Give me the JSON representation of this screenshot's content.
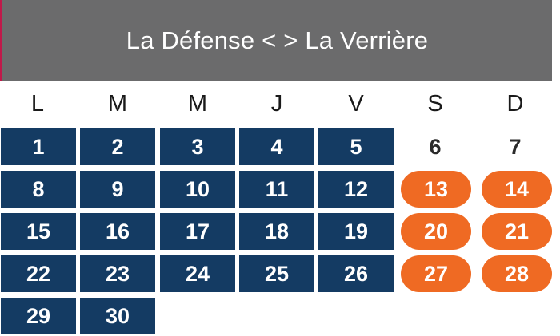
{
  "header": {
    "title": "La Défense < > La Verrière"
  },
  "colors": {
    "header_bg": "#6b6b6c",
    "header_accent": "#c0194a",
    "weekday_cell": "#143b63",
    "weekend_service": "#ef6a23"
  },
  "weekdays": [
    "L",
    "M",
    "M",
    "J",
    "V",
    "S",
    "D"
  ],
  "weeks": [
    [
      null,
      null,
      null,
      null,
      null,
      null,
      null
    ],
    [
      "1",
      "2",
      "3",
      "4",
      "5",
      "6",
      "7"
    ],
    [
      "8",
      "9",
      "10",
      "11",
      "12",
      "13",
      "14"
    ],
    [
      "15",
      "16",
      "17",
      "18",
      "19",
      "20",
      "21"
    ],
    [
      "22",
      "23",
      "24",
      "25",
      "26",
      "27",
      "28"
    ],
    [
      "29",
      "30",
      null,
      null,
      null,
      null,
      null
    ]
  ],
  "calendar": {
    "row1": [
      "1",
      "2",
      "3",
      "4",
      "5",
      "6",
      "7"
    ],
    "row2": [
      "8",
      "9",
      "10",
      "11",
      "12",
      "13",
      "14"
    ],
    "row3": [
      "15",
      "16",
      "17",
      "18",
      "19",
      "20",
      "21"
    ],
    "row4": [
      "22",
      "23",
      "24",
      "25",
      "26",
      "27",
      "28"
    ],
    "row5": [
      "29",
      "30"
    ]
  }
}
